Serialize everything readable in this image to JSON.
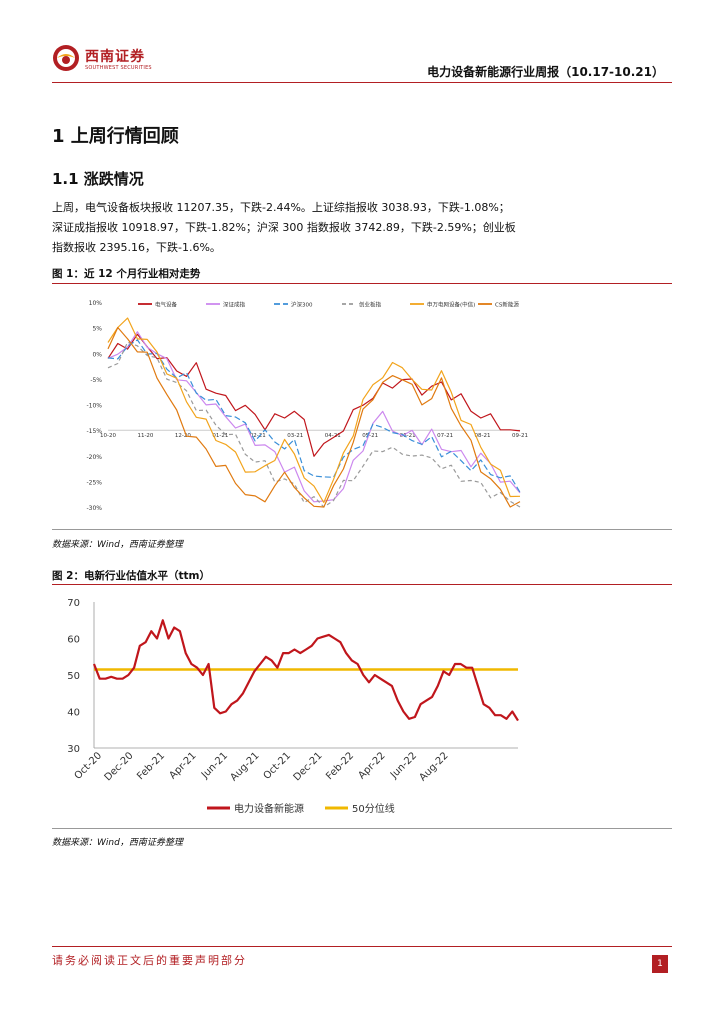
{
  "header": {
    "logo_cn": "西南证券",
    "logo_en": "SOUTHWEST SECURITIES",
    "report_title": "电力设备新能源行业周报（10.17-10.21）"
  },
  "section": {
    "h1": "1  上周行情回顾",
    "h2": "1.1 涨跌情况",
    "paragraph": [
      "    上周，电气设备板块报收 11207.35，下跌-2.44%。上证综指报收 3038.93，下跌-1.08%；",
      "深证成指报收 10918.97，下跌-1.82%；沪深 300 指数报收 3742.89，下跌-2.59%；创业板",
      "指数报收 2395.16，下跌-1.6%。"
    ]
  },
  "figure1": {
    "title": "图 1：近 12 个月行业相对走势",
    "source": "数据来源：Wind，西南证券整理"
  },
  "figure2": {
    "title": "图 2：电新行业估值水平（ttm）",
    "source": "数据来源：Wind，西南证券整理"
  },
  "footer": {
    "disclaimer": "请务必阅读正文后的重要声明部分",
    "page": "1"
  },
  "colors": {
    "brand_red": "#b21f23",
    "line_red": "#c0161c",
    "line_purple": "#cc88ee",
    "line_blue": "#3a8fd8",
    "line_gray": "#9a9a9a",
    "line_orange": "#f2a41c",
    "line_darkorange": "#e07a10",
    "line_yellow": "#f0b800"
  },
  "chart_data": [
    {
      "type": "line",
      "title": "",
      "x_ticks": [
        "10-20",
        "11-20",
        "12-20",
        "01-21",
        "02-21",
        "03-21",
        "04-21",
        "05-21",
        "06-21",
        "07-21",
        "08-21",
        "09-21"
      ],
      "y_ticks": [
        "10%",
        "5%",
        "0%",
        "-5%",
        "-10%",
        "-15%",
        "-20%",
        "-25%",
        "-30%"
      ],
      "ylim": [
        -30,
        10
      ],
      "legend": [
        "电气设备",
        "深证成指",
        "沪深300",
        "创业板指",
        "申万电网设备(中信)",
        "CS新能源"
      ],
      "legend_position": "top",
      "series": [
        {
          "name": "电气设备",
          "values": [
            -1,
            1,
            2,
            3,
            1,
            0,
            -2,
            -3,
            -4,
            -3,
            -6,
            -8,
            -9,
            -10,
            -11,
            -12,
            -14,
            -13,
            -12,
            -11,
            -14,
            -19,
            -18,
            -17,
            -14,
            -12,
            -10,
            -8,
            -7,
            -6,
            -5,
            -6,
            -7,
            -7,
            -6,
            -8,
            -9,
            -11,
            -12,
            -13,
            -14,
            -15,
            -16
          ]
        },
        {
          "name": "深证成指",
          "values": [
            -2,
            0,
            2,
            3,
            2,
            0,
            -2,
            -4,
            -6,
            -8,
            -9,
            -11,
            -12,
            -14,
            -15,
            -17,
            -18,
            -20,
            -22,
            -23,
            -27,
            -28,
            -30,
            -28,
            -26,
            -22,
            -18,
            -14,
            -12,
            -14,
            -17,
            -15,
            -17,
            -16,
            -18,
            -19,
            -20,
            -21,
            -20,
            -22,
            -24,
            -26,
            -27
          ]
        },
        {
          "name": "沪深300",
          "values": [
            -2,
            0,
            1,
            2,
            1,
            -1,
            -3,
            -4,
            -5,
            -7,
            -9,
            -10,
            -11,
            -13,
            -14,
            -16,
            -16,
            -17,
            -18,
            -18,
            -22,
            -24,
            -25,
            -23,
            -21,
            -19,
            -17,
            -15,
            -14,
            -15,
            -17,
            -16,
            -18,
            -17,
            -19,
            -20,
            -21,
            -22,
            -22,
            -23,
            -24,
            -25,
            -26
          ]
        },
        {
          "name": "创业板指",
          "values": [
            -3,
            -1,
            1,
            2,
            0,
            -2,
            -4,
            -6,
            -8,
            -10,
            -12,
            -14,
            -15,
            -17,
            -19,
            -21,
            -22,
            -24,
            -25,
            -26,
            -28,
            -29,
            -30,
            -28,
            -26,
            -24,
            -22,
            -20,
            -18,
            -19,
            -20,
            -19,
            -21,
            -20,
            -22,
            -23,
            -24,
            -25,
            -26,
            -27,
            -28,
            -29,
            -30
          ]
        },
        {
          "name": "申万电网设备(中信)",
          "values": [
            3,
            5,
            6,
            4,
            2,
            0,
            -3,
            -6,
            -9,
            -12,
            -14,
            -16,
            -18,
            -20,
            -22,
            -24,
            -22,
            -20,
            -18,
            -19,
            -24,
            -27,
            -28,
            -25,
            -20,
            -15,
            -10,
            -6,
            -4,
            -3,
            -2,
            -5,
            -8,
            -6,
            -4,
            -8,
            -12,
            -15,
            -18,
            -21,
            -24,
            -27,
            -28
          ]
        },
        {
          "name": "CS新能源",
          "values": [
            2,
            4,
            3,
            1,
            -1,
            -4,
            -8,
            -12,
            -15,
            -17,
            -19,
            -21,
            -23,
            -25,
            -27,
            -29,
            -28,
            -26,
            -24,
            -25,
            -29,
            -30,
            -30,
            -27,
            -22,
            -17,
            -12,
            -8,
            -6,
            -5,
            -4,
            -7,
            -10,
            -8,
            -6,
            -10,
            -14,
            -18,
            -22,
            -25,
            -27,
            -29,
            -30
          ]
        }
      ]
    },
    {
      "type": "line",
      "title": "",
      "x_ticks": [
        "Oct-20",
        "Dec-20",
        "Feb-21",
        "Apr-21",
        "Jun-21",
        "Aug-21",
        "Oct-21",
        "Dec-21",
        "Feb-22",
        "Apr-22",
        "Jun-22",
        "Aug-22"
      ],
      "y_ticks": [
        70,
        60,
        50,
        40,
        30
      ],
      "ylim": [
        30,
        70
      ],
      "legend": [
        "电力设备新能源",
        "50分位线"
      ],
      "legend_position": "bottom",
      "series": [
        {
          "name": "电力设备新能源",
          "values": [
            53,
            49,
            49,
            49.5,
            49,
            49,
            50,
            52,
            58,
            59,
            62,
            60,
            65,
            60,
            63,
            62,
            56,
            53,
            52,
            50,
            53,
            41,
            39.5,
            40,
            42,
            43,
            45,
            48,
            51,
            53,
            55,
            54,
            52,
            56,
            56,
            57,
            56,
            57,
            58,
            60,
            60.5,
            61,
            60,
            59,
            56,
            54,
            53,
            50,
            48,
            50,
            49,
            48,
            47,
            43,
            40,
            38,
            38.5,
            42,
            43,
            44,
            47,
            51,
            50,
            53,
            53,
            52,
            52,
            47,
            42,
            41,
            39,
            39,
            38,
            40,
            37.5
          ]
        },
        {
          "name": "50分位线",
          "values": [
            51.5,
            51.5
          ]
        }
      ]
    }
  ]
}
